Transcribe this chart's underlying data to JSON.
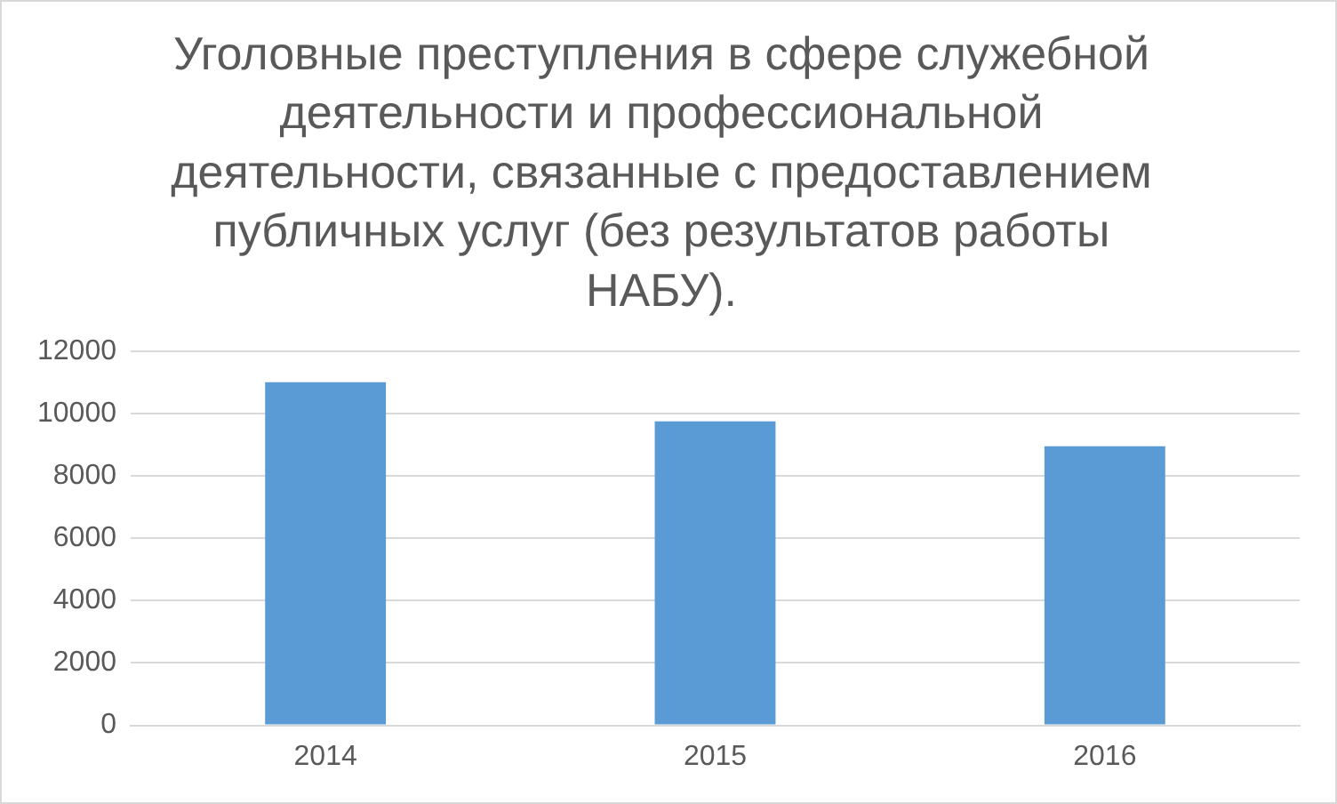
{
  "chart_data": {
    "type": "bar",
    "title": "Уголовные преступления в сфере служебной деятельности и профессиональной деятельности, связанные с предоставлением публичных услуг (без результатов работы НАБУ).",
    "categories": [
      "2014",
      "2015",
      "2016"
    ],
    "values": [
      11000,
      9750,
      8950
    ],
    "color": "#5b9bd5",
    "ylim": [
      0,
      12000
    ],
    "yticks": [
      0,
      2000,
      4000,
      6000,
      8000,
      10000,
      12000
    ],
    "grid": "y",
    "legend": false
  }
}
